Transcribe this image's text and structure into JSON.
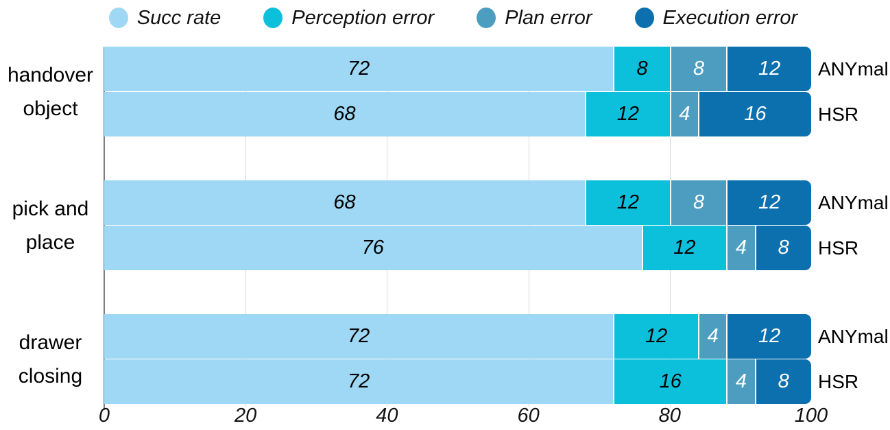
{
  "legend": {
    "items": [
      {
        "label": "Succ rate",
        "color": "#9FD8F4"
      },
      {
        "label": "Perception error",
        "color": "#0CC0DC"
      },
      {
        "label": "Plan error",
        "color": "#4D9DC1"
      },
      {
        "label": "Execution error",
        "color": "#0B70AD"
      }
    ]
  },
  "chart_data": {
    "type": "bar",
    "orientation": "horizontal",
    "stacked": true,
    "title": "",
    "xlabel": "",
    "ylabel": "",
    "xlim": [
      0,
      100
    ],
    "xticks": [
      0,
      20,
      40,
      60,
      80,
      100
    ],
    "grid": "vertical gridlines at 20/40/60/80, visible between bar groups",
    "legend_position": "top",
    "series": [
      {
        "name": "Succ rate",
        "color": "#9FD8F4",
        "label_color": "#000000"
      },
      {
        "name": "Perception error",
        "color": "#0CC0DC",
        "label_color": "#000000"
      },
      {
        "name": "Plan error",
        "color": "#4D9DC1",
        "label_color": "#ffffff"
      },
      {
        "name": "Execution error",
        "color": "#0B70AD",
        "label_color": "#ffffff"
      }
    ],
    "groups": [
      {
        "category": "handover object",
        "category_lines": [
          "handover",
          "object"
        ],
        "bars": [
          {
            "robot": "ANYmal",
            "values": [
              72,
              8,
              8,
              12
            ]
          },
          {
            "robot": "HSR",
            "values": [
              68,
              12,
              4,
              16
            ]
          }
        ]
      },
      {
        "category": "pick and place",
        "category_lines": [
          "pick and",
          "place"
        ],
        "bars": [
          {
            "robot": "ANYmal",
            "values": [
              68,
              12,
              8,
              12
            ]
          },
          {
            "robot": "HSR",
            "values": [
              76,
              12,
              4,
              8
            ]
          }
        ]
      },
      {
        "category": "drawer closing",
        "category_lines": [
          "drawer",
          "closing"
        ],
        "bars": [
          {
            "robot": "ANYmal",
            "values": [
              72,
              12,
              4,
              12
            ]
          },
          {
            "robot": "HSR",
            "values": [
              72,
              16,
              4,
              8
            ]
          }
        ]
      }
    ]
  }
}
